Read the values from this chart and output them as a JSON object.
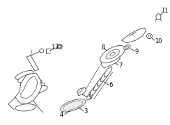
{
  "background_color": "#ffffff",
  "line_color": "#444444",
  "label_color": "#000000",
  "fig_width": 2.44,
  "fig_height": 1.8,
  "dpi": 100
}
